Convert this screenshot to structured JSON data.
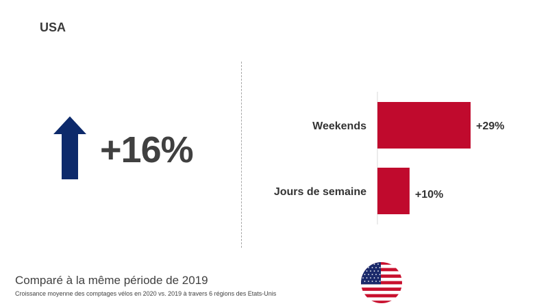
{
  "region": "USA",
  "kpi": {
    "value_label": "+16%",
    "direction": "up",
    "arrow_color": "#0d2a6b"
  },
  "chart_data": {
    "type": "bar",
    "orientation": "horizontal",
    "categories": [
      "Weekends",
      "Jours de semaine"
    ],
    "values": [
      29,
      10
    ],
    "value_labels": [
      "+29%",
      "+10%"
    ],
    "xlim": [
      0,
      29
    ],
    "bar_color": "#c00a2d",
    "grid": false,
    "legend": "none"
  },
  "caption": {
    "main": "Comparé à la même période de 2019",
    "sub": "Croissance moyenne des comptages vélos en 2020 vs. 2019 à travers 6 régions des Etats-Unis"
  },
  "flag": {
    "icon": "us-flag-icon",
    "colors": {
      "red": "#c8102e",
      "white": "#ffffff",
      "blue": "#1b2a6b"
    }
  }
}
